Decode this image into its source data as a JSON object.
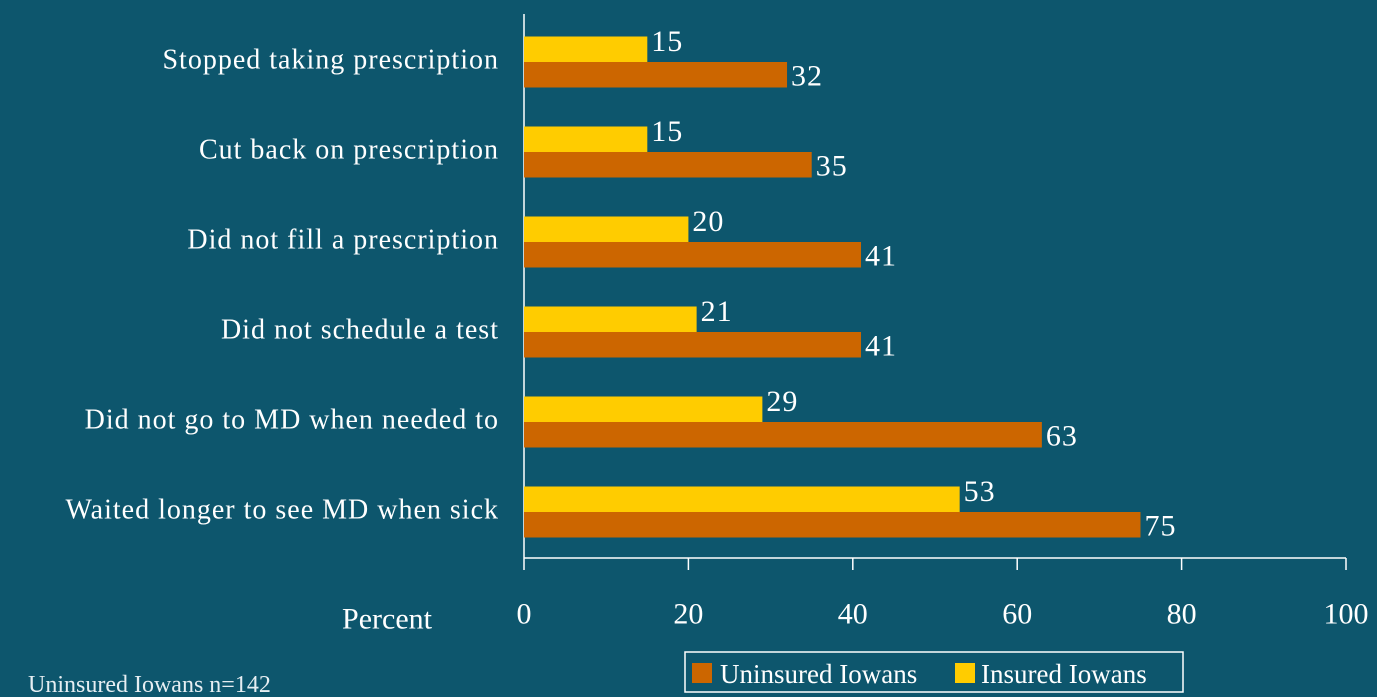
{
  "chart_data": {
    "type": "bar",
    "orientation": "horizontal",
    "categories": [
      "Stopped taking prescription",
      "Cut back on prescription",
      "Did not fill a prescription",
      "Did not schedule a test",
      "Did not go to MD when needed to",
      "Waited longer to see MD when sick"
    ],
    "series": [
      {
        "name": "Uninsured Iowans",
        "color": "#cc6600",
        "values": [
          32,
          35,
          41,
          41,
          63,
          75
        ]
      },
      {
        "name": "Insured Iowans",
        "color": "#ffcc00",
        "values": [
          15,
          15,
          20,
          21,
          29,
          53
        ]
      }
    ],
    "xlabel": "Percent",
    "xlim": [
      0,
      100
    ],
    "xticks": [
      0,
      20,
      40,
      60,
      80,
      100
    ],
    "note": "Uninsured Iowans n=142",
    "legend": "bottom"
  }
}
